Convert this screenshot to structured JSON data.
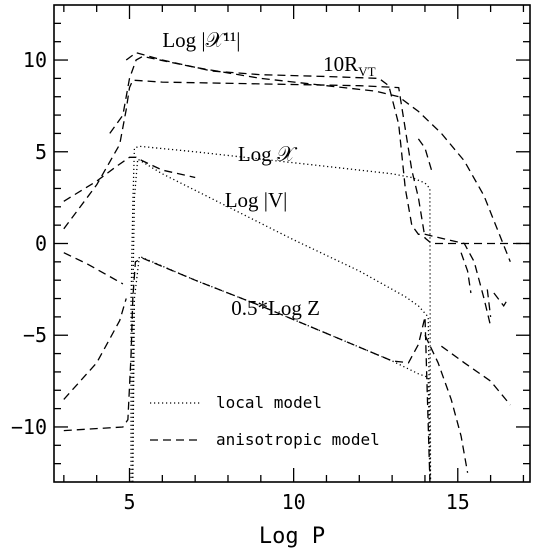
{
  "chart_data": {
    "type": "line",
    "xlabel": "Log P",
    "ylabel": "",
    "xlim": [
      2.7,
      17.2
    ],
    "ylim": [
      -13,
      13
    ],
    "xticks_major": [
      5,
      10,
      15
    ],
    "yticks_major": [
      -10,
      -5,
      0,
      5,
      10
    ],
    "grid": false,
    "legend_position": "bottom-left",
    "legend": [
      {
        "label": "local model",
        "style": "dotted"
      },
      {
        "label": "anisotropic model",
        "style": "dashed"
      }
    ],
    "annotations": [
      {
        "text": "Log |𝒳¹¹|",
        "x": 6.0,
        "y": 10.7
      },
      {
        "text": "10R",
        "sub": "VT",
        "x": 10.9,
        "y": 9.4
      },
      {
        "text": "Log 𝒳",
        "x": 8.3,
        "y": 4.5
      },
      {
        "text": "Log |V|",
        "x": 7.9,
        "y": 2.0
      },
      {
        "text": "0.5*Log Z",
        "x": 8.1,
        "y": -3.9
      }
    ],
    "series": [
      {
        "style": "dotted",
        "points": [
          [
            5.05,
            -13
          ],
          [
            5.05,
            -3
          ],
          [
            5.1,
            2.0
          ],
          [
            5.15,
            5.2
          ],
          [
            5.3,
            5.3
          ],
          [
            7,
            5.0
          ],
          [
            9,
            4.6
          ],
          [
            11,
            4.2
          ],
          [
            13,
            3.8
          ],
          [
            13.6,
            3.6
          ],
          [
            14.0,
            3.3
          ],
          [
            14.15,
            3.0
          ],
          [
            14.17,
            -13
          ]
        ]
      },
      {
        "style": "dotted",
        "points": [
          [
            5.1,
            -13
          ],
          [
            5.1,
            -3
          ],
          [
            5.15,
            2.5
          ],
          [
            5.25,
            4.6
          ],
          [
            6,
            3.8
          ],
          [
            8,
            2.0
          ],
          [
            10,
            0.2
          ],
          [
            12,
            -1.5
          ],
          [
            13.4,
            -2.9
          ],
          [
            13.8,
            -3.4
          ],
          [
            14.1,
            -4.0
          ],
          [
            14.17,
            -13
          ]
        ]
      },
      {
        "style": "dotted",
        "points": [
          [
            5.1,
            -13
          ],
          [
            5.15,
            -3.0
          ],
          [
            5.3,
            -0.7
          ],
          [
            7,
            -2.0
          ],
          [
            9,
            -3.4
          ],
          [
            11,
            -4.9
          ],
          [
            13,
            -6.4
          ],
          [
            13.8,
            -7.1
          ],
          [
            14.1,
            -7.3
          ],
          [
            14.15,
            -13
          ]
        ]
      },
      {
        "style": "dashed",
        "points": [
          [
            3.0,
            2.3
          ],
          [
            4.0,
            3.4
          ],
          [
            4.6,
            4.2
          ],
          [
            5.0,
            4.7
          ],
          [
            5.2,
            4.7
          ],
          [
            5.4,
            4.5
          ],
          [
            6,
            4.0
          ],
          [
            7,
            3.6
          ]
        ]
      },
      {
        "style": "dashed",
        "points": [
          [
            3.0,
            -0.5
          ],
          [
            3.7,
            -1.1
          ],
          [
            4.3,
            -1.7
          ],
          [
            4.8,
            -2.2
          ]
        ]
      },
      {
        "style": "dashed",
        "points": [
          [
            3.0,
            -8.5
          ],
          [
            4.0,
            -6.5
          ],
          [
            4.7,
            -4.2
          ],
          [
            4.9,
            -3.0
          ]
        ]
      },
      {
        "style": "dashed",
        "points": [
          [
            3.0,
            -10.2
          ],
          [
            4.8,
            -10.0
          ],
          [
            4.95,
            -9.6
          ],
          [
            5.05,
            -6.0
          ],
          [
            5.1,
            -3.0
          ],
          [
            5.18,
            -1.0
          ],
          [
            5.4,
            -0.8
          ],
          [
            7,
            -2.0
          ],
          [
            9,
            -3.4
          ],
          [
            11,
            -4.9
          ],
          [
            13,
            -6.4
          ],
          [
            13.5,
            -6.5
          ],
          [
            13.8,
            -5.5
          ],
          [
            14,
            -4.0
          ],
          [
            14.15,
            -13
          ]
        ]
      },
      {
        "style": "dashed",
        "points": [
          [
            3.0,
            0.8
          ],
          [
            4.0,
            3.2
          ],
          [
            4.7,
            5.4
          ],
          [
            4.9,
            7.3
          ],
          [
            5.0,
            8.5
          ],
          [
            5.1,
            8.9
          ],
          [
            6,
            8.8
          ],
          [
            9,
            8.7
          ],
          [
            12,
            8.6
          ],
          [
            13.2,
            8.5
          ],
          [
            13.6,
            4.0
          ],
          [
            13.8,
            2.5
          ],
          [
            14.0,
            0.3
          ],
          [
            14.2,
            0.0
          ],
          [
            17.2,
            0.0
          ]
        ]
      },
      {
        "style": "dashed",
        "points": [
          [
            4.4,
            6.0
          ],
          [
            4.8,
            7.0
          ],
          [
            5.0,
            9.0
          ],
          [
            5.2,
            10.0
          ],
          [
            5.4,
            10.2
          ],
          [
            7,
            9.6
          ],
          [
            9,
            9.0
          ],
          [
            11,
            8.6
          ],
          [
            12.5,
            8.3
          ],
          [
            13.2,
            8.0
          ],
          [
            13.8,
            7.2
          ],
          [
            14.5,
            6.0
          ],
          [
            15.2,
            4.5
          ],
          [
            15.8,
            2.6
          ],
          [
            16.6,
            -1.0
          ]
        ]
      },
      {
        "style": "dashed",
        "points": [
          [
            4.9,
            10.0
          ],
          [
            5.05,
            10.2
          ],
          [
            5.2,
            10.4
          ],
          [
            6,
            10.0
          ],
          [
            7.5,
            9.4
          ],
          [
            9,
            9.2
          ],
          [
            11,
            9.1
          ],
          [
            12.6,
            9.0
          ],
          [
            12.9,
            8.6
          ],
          [
            13.2,
            6.5
          ],
          [
            13.4,
            3.0
          ],
          [
            13.6,
            1.0
          ],
          [
            13.8,
            0.5
          ],
          [
            14.0,
            0.5
          ],
          [
            14.7,
            0.2
          ],
          [
            15.2,
            0.0
          ],
          [
            15.5,
            -1.0
          ],
          [
            15.8,
            -3.0
          ],
          [
            16.0,
            -4.5
          ]
        ]
      },
      {
        "style": "dashed",
        "points": [
          [
            14.5,
            -5.6
          ],
          [
            15.2,
            -6.5
          ],
          [
            16,
            -7.5
          ],
          [
            16.6,
            -8.8
          ]
        ]
      },
      {
        "style": "dashed",
        "points": [
          [
            14.0,
            -5.0
          ],
          [
            14.4,
            -6.5
          ],
          [
            14.8,
            -8.5
          ],
          [
            15.1,
            -10.5
          ],
          [
            15.3,
            -12.5
          ]
        ]
      },
      {
        "style": "dashed",
        "points": [
          [
            13.8,
            5.7
          ],
          [
            14.0,
            5.2
          ],
          [
            14.2,
            4.0
          ]
        ]
      },
      {
        "style": "dashed",
        "points": [
          [
            15.1,
            -0.5
          ],
          [
            15.3,
            -1.5
          ],
          [
            15.4,
            -2.7
          ]
        ]
      },
      {
        "style": "dashed",
        "points": [
          [
            15.9,
            -2.5
          ],
          [
            16.0,
            -4.0
          ]
        ]
      },
      {
        "style": "dashed",
        "points": [
          [
            16.1,
            -2.7
          ],
          [
            16.4,
            -3.4
          ],
          [
            16.5,
            -3.1
          ]
        ]
      }
    ]
  }
}
